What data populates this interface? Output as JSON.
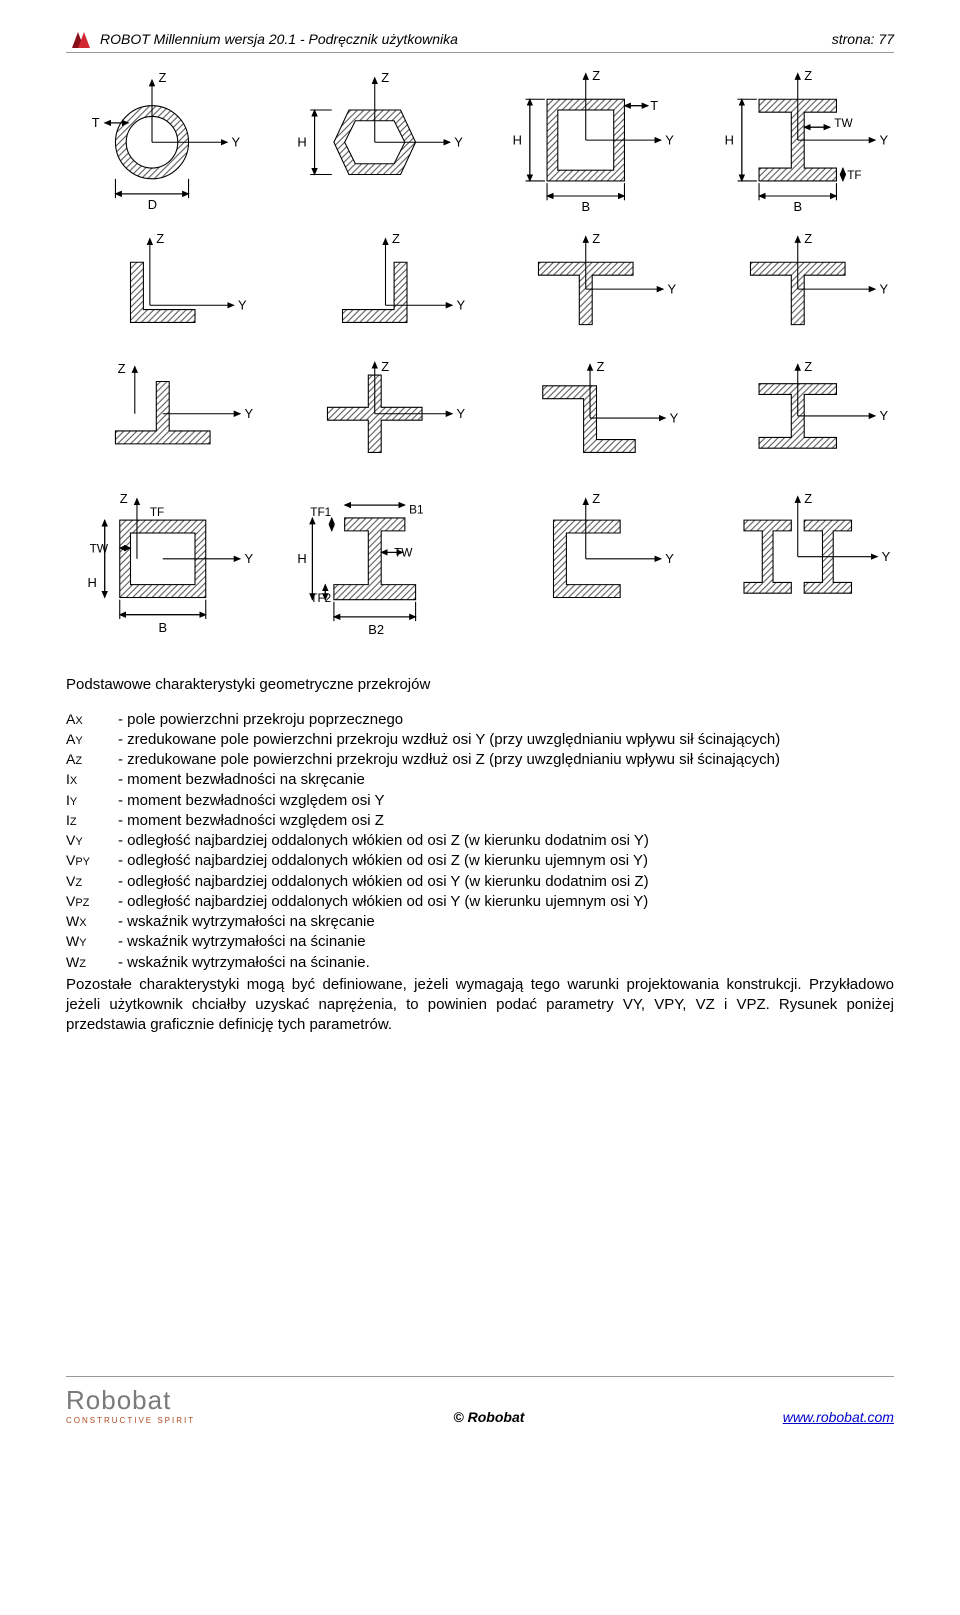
{
  "header": {
    "title": "ROBOT Millennium wersja 20.1 - Podręcznik użytkownika",
    "page_label": "strona: 77",
    "logo_colors": {
      "dark": "#8a0e1a",
      "light": "#d22630"
    }
  },
  "section_title": "Podstawowe charakterystyki geometryczne przekrojów",
  "definitions": [
    {
      "sym": "A",
      "sub": "X",
      "text": "- pole powierzchni przekroju poprzecznego"
    },
    {
      "sym": "A",
      "sub": "Y",
      "text": "- zredukowane pole powierzchni przekroju wzdłuż osi Y (przy uwzględnianiu wpływu sił ścinających)"
    },
    {
      "sym": "A",
      "sub": "Z",
      "text": "- zredukowane pole powierzchni przekroju wzdłuż osi Z (przy uwzględnianiu wpływu sił ścinających)"
    },
    {
      "sym": "I",
      "sub": "X",
      "text": "- moment bezwładności na skręcanie"
    },
    {
      "sym": "I",
      "sub": "Y",
      "text": "- moment bezwładności względem osi Y"
    },
    {
      "sym": "I",
      "sub": "Z",
      "text": "- moment bezwładności względem osi Z"
    },
    {
      "sym": "V",
      "sub": "Y",
      "text": "- odległość najbardziej oddalonych włókien od osi Z (w kierunku dodatnim osi Y)"
    },
    {
      "sym": "V",
      "sub": "PY",
      "text": "- odległość najbardziej oddalonych włókien od osi Z (w kierunku ujemnym osi Y)"
    },
    {
      "sym": "V",
      "sub": "Z",
      "text": "- odległość najbardziej oddalonych włókien od osi Y (w kierunku dodatnim osi Z)"
    },
    {
      "sym": "V",
      "sub": "PZ",
      "text": "- odległość najbardziej oddalonych włókien od osi Y (w kierunku ujemnym osi Y)"
    },
    {
      "sym": "W",
      "sub": "X",
      "text": "- wskaźnik wytrzymałości na skręcanie"
    },
    {
      "sym": "W",
      "sub": "Y",
      "text": "- wskaźnik wytrzymałości na ścinanie"
    },
    {
      "sym": "W",
      "sub": "Z",
      "text": "- wskaźnik wytrzymałości na ścinanie."
    }
  ],
  "paragraph": "Pozostałe charakterystyki mogą być definiowane, jeżeli wymagają tego warunki projektowania konstrukcji. Przykładowo jeżeli użytkownik chciałby uzyskać naprężenia, to powinien podać parametry VY, VPY, VZ i VPZ. Rysunek poniżej przedstawia graficznie definicję tych parametrów.",
  "footer": {
    "brand": "Robobat",
    "tagline": "CONSTRUCTIVE SPIRIT",
    "center": "© Robobat",
    "link": "www.robobat.com",
    "brand_color": "#7a7a7a",
    "tag_color": "#b04a1f",
    "link_color": "#0000cc"
  },
  "diagram_style": {
    "stroke": "#000000",
    "stroke_width": 1.2,
    "hatch_color": "#555555",
    "label_font_size": 12,
    "arrow_size": 5
  },
  "diagrams": {
    "row1": [
      {
        "type": "tube",
        "labels": [
          "Z",
          "Y",
          "T",
          "D"
        ]
      },
      {
        "type": "hexagon",
        "labels": [
          "Z",
          "Y",
          "H"
        ]
      },
      {
        "type": "box",
        "labels": [
          "Z",
          "Y",
          "T",
          "H",
          "B"
        ]
      },
      {
        "type": "ibeam",
        "labels": [
          "Z",
          "Y",
          "TW",
          "TF",
          "H",
          "B"
        ]
      }
    ],
    "row2": [
      {
        "type": "angle-L",
        "labels": [
          "Z",
          "Y"
        ]
      },
      {
        "type": "angle-Lflip",
        "labels": [
          "Z",
          "Y"
        ]
      },
      {
        "type": "tee-down",
        "labels": [
          "Z",
          "Y"
        ]
      },
      {
        "type": "tee-down2",
        "labels": [
          "Z",
          "Y"
        ]
      }
    ],
    "row3": [
      {
        "type": "tee-up",
        "labels": [
          "Z",
          "Y"
        ]
      },
      {
        "type": "cross",
        "labels": [
          "Z",
          "Y"
        ]
      },
      {
        "type": "zed",
        "labels": [
          "Z",
          "Y"
        ]
      },
      {
        "type": "ibeam-thin",
        "labels": [
          "Z",
          "Y"
        ]
      }
    ],
    "row4": [
      {
        "type": "box-dim",
        "labels": [
          "Z",
          "Y",
          "TF",
          "TW",
          "H",
          "B"
        ]
      },
      {
        "type": "ibeam-asym",
        "labels": [
          "TF1",
          "TF2",
          "B1",
          "B2",
          "TW",
          "H"
        ]
      },
      {
        "type": "channel",
        "labels": [
          "Z",
          "Y"
        ]
      },
      {
        "type": "double-I",
        "labels": [
          "Z",
          "Y"
        ]
      }
    ]
  }
}
